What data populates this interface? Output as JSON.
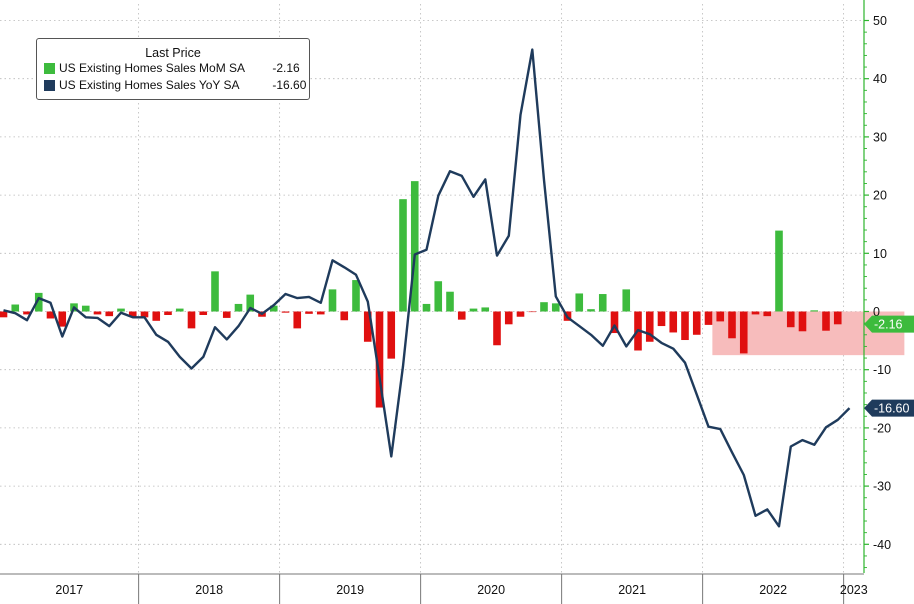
{
  "chart_data": {
    "type": "bar+line",
    "legend": {
      "title": "Last Price",
      "entries": [
        {
          "name": "US Existing Homes Sales MoM SA",
          "value": "-2.16",
          "color": "#3dbb3d"
        },
        {
          "name": "US Existing Homes Sales YoY SA",
          "value": "-16.60",
          "color": "#1f3b5c"
        }
      ]
    },
    "y_axis": {
      "position": "right",
      "range": [
        -45,
        52
      ],
      "ticks": [
        50,
        40,
        30,
        20,
        10,
        0,
        -10,
        -20,
        -30,
        -40
      ],
      "tick_labels": [
        "50",
        "40",
        "30",
        "20",
        "10",
        "0",
        "-10",
        "-20",
        "-30",
        "-40"
      ]
    },
    "x_axis": {
      "years": [
        "2017",
        "2018",
        "2019",
        "2020",
        "2021",
        "2022",
        "2023"
      ],
      "start": "2017-01",
      "end": "2023-05"
    },
    "grid": true,
    "colors": {
      "positive": "#3dbb3d",
      "negative": "#e01010",
      "line": "#1f3b5c",
      "highlight": "#f7bcbc",
      "axis": "#2db52d"
    },
    "highlight_box": {
      "x_start": "2022-02",
      "x_end": "2023-05",
      "y_low": -7.5,
      "y_high": 0
    },
    "series": [
      {
        "name": "US Existing Homes Sales MoM SA",
        "type": "bar",
        "values": [
          -1.0,
          1.2,
          -0.5,
          3.2,
          -1.2,
          -2.6,
          1.4,
          1.0,
          -0.5,
          -0.8,
          0.5,
          -0.9,
          -1.0,
          -1.6,
          -0.6,
          0.5,
          -2.9,
          -0.6,
          6.9,
          -1.1,
          1.3,
          2.9,
          -0.9,
          1.0,
          -0.2,
          -2.9,
          -0.4,
          -0.5,
          3.8,
          -1.5,
          5.4,
          -5.2,
          -16.5,
          -8.1,
          19.3,
          22.4,
          1.3,
          5.2,
          3.4,
          -1.4,
          0.5,
          0.7,
          -5.8,
          -2.2,
          -0.9,
          -0.1,
          1.6,
          1.4,
          -1.6,
          3.1,
          0.4,
          3.0,
          -3.7,
          3.8,
          -6.7,
          -5.2,
          -2.5,
          -3.6,
          -4.9,
          -4.0,
          -2.3,
          -1.7,
          -4.6,
          -7.2,
          -0.5,
          -0.8,
          13.9,
          -2.7,
          -3.4,
          0.2,
          -3.3,
          -2.2
        ]
      },
      {
        "name": "US Existing Homes Sales YoY SA",
        "type": "line",
        "values": [
          0.2,
          -0.3,
          -1.5,
          2.3,
          1.5,
          -4.3,
          0.7,
          -1.0,
          -1.1,
          -2.5,
          -0.2,
          -1.0,
          -1.0,
          -4.0,
          -5.2,
          -7.8,
          -9.8,
          -7.8,
          -2.7,
          -4.8,
          -2.5,
          0.6,
          -0.4,
          1.1,
          3.0,
          2.3,
          2.5,
          1.5,
          8.8,
          7.6,
          6.3,
          1.7,
          -11.3,
          -24.9,
          -9.4,
          9.8,
          10.6,
          19.9,
          24.1,
          23.3,
          19.7,
          22.7,
          9.6,
          13.0,
          33.8,
          45.0,
          22.6,
          2.6,
          -1.0,
          -2.5,
          -4.0,
          -5.9,
          -2.4,
          -6.0,
          -3.2,
          -3.9,
          -5.4,
          -6.4,
          -8.8,
          -14.3,
          -19.8,
          -20.2,
          -24.2,
          -28.1,
          -35.1,
          -34.0,
          -36.9,
          -23.2,
          -22.1,
          -22.9,
          -19.9,
          -18.6,
          -16.6
        ]
      }
    ],
    "last_value_flags": [
      {
        "label": "-2.16",
        "value": -2.16,
        "color": "#3dbb3d"
      },
      {
        "label": "-16.60",
        "value": -16.6,
        "color": "#1f3b5c"
      }
    ]
  }
}
